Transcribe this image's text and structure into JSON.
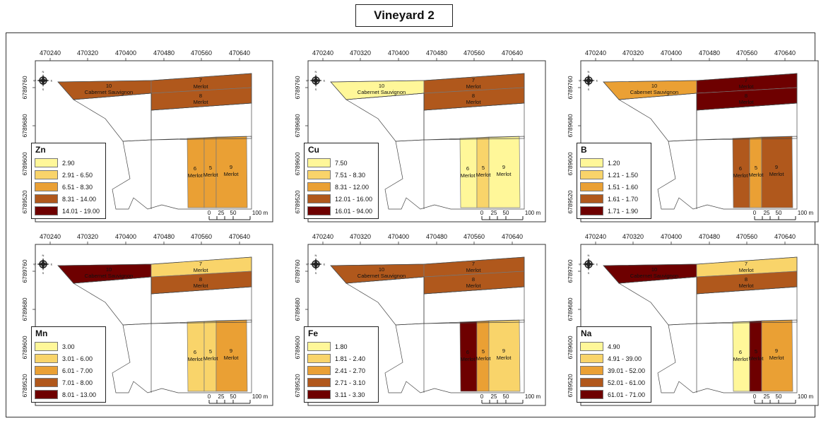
{
  "title": "Vineyard 2",
  "axes": {
    "x_ticks": [
      "470240",
      "470320",
      "470400",
      "470480",
      "470560",
      "470640"
    ],
    "y_ticks": [
      "6789760",
      "6789680",
      "6789600",
      "6789520"
    ]
  },
  "scalebar": {
    "labels": [
      "0",
      "25",
      "50",
      "100 m"
    ]
  },
  "compass": {
    "n": "N",
    "s": "S",
    "e": "E",
    "w": "W"
  },
  "block_labels": {
    "b10": [
      "10",
      "Cabernet Sauvignon"
    ],
    "b7": [
      "7",
      "Merlot"
    ],
    "b8": [
      "8",
      "Merlot"
    ],
    "b6": [
      "6",
      "Merlot"
    ],
    "b5": [
      "5",
      "Merlot"
    ],
    "b9": [
      "9",
      "Merlot"
    ]
  },
  "palette": [
    "#fff799",
    "#f9d46a",
    "#eaa034",
    "#b0581c",
    "#6e0000"
  ],
  "panels": [
    {
      "name": "Zn",
      "classes": [
        "2.90",
        "2.91 - 6.50",
        "6.51 - 8.30",
        "8.31 - 14.00",
        "14.01 - 19.00"
      ],
      "block_class": {
        "b10": 4,
        "b7": 4,
        "b8": 4,
        "b6": 3,
        "b5": 3,
        "b9": 3
      }
    },
    {
      "name": "Cu",
      "classes": [
        "7.50",
        "7.51 - 8.30",
        "8.31 - 12.00",
        "12.01 - 16.00",
        "16.01 - 94.00"
      ],
      "block_class": {
        "b10": 1,
        "b7": 4,
        "b8": 4,
        "b6": 1,
        "b5": 2,
        "b9": 1
      }
    },
    {
      "name": "B",
      "classes": [
        "1.20",
        "1.21 - 1.50",
        "1.51 - 1.60",
        "1.61 - 1.70",
        "1.71 - 1.90"
      ],
      "block_class": {
        "b10": 3,
        "b7": 5,
        "b8": 5,
        "b6": 4,
        "b5": 3,
        "b9": 4
      }
    },
    {
      "name": "Mn",
      "classes": [
        "3.00",
        "3.01 - 6.00",
        "6.01 - 7.00",
        "7.01 - 8.00",
        "8.01 - 13.00"
      ],
      "block_class": {
        "b10": 5,
        "b7": 2,
        "b8": 4,
        "b6": 2,
        "b5": 2,
        "b9": 3
      }
    },
    {
      "name": "Fe",
      "classes": [
        "1.80",
        "1.81 - 2.40",
        "2.41 - 2.70",
        "2.71 - 3.10",
        "3.11 - 3.30"
      ],
      "block_class": {
        "b10": 4,
        "b7": 4,
        "b8": 4,
        "b6": 5,
        "b5": 3,
        "b9": 2
      }
    },
    {
      "name": "Na",
      "classes": [
        "4.90",
        "4.91 - 39.00",
        "39.01 - 52.00",
        "52.01 - 61.00",
        "61.01 - 71.00"
      ],
      "block_class": {
        "b10": 5,
        "b7": 2,
        "b8": 4,
        "b6": 1,
        "b5": 5,
        "b9": 3
      }
    }
  ]
}
